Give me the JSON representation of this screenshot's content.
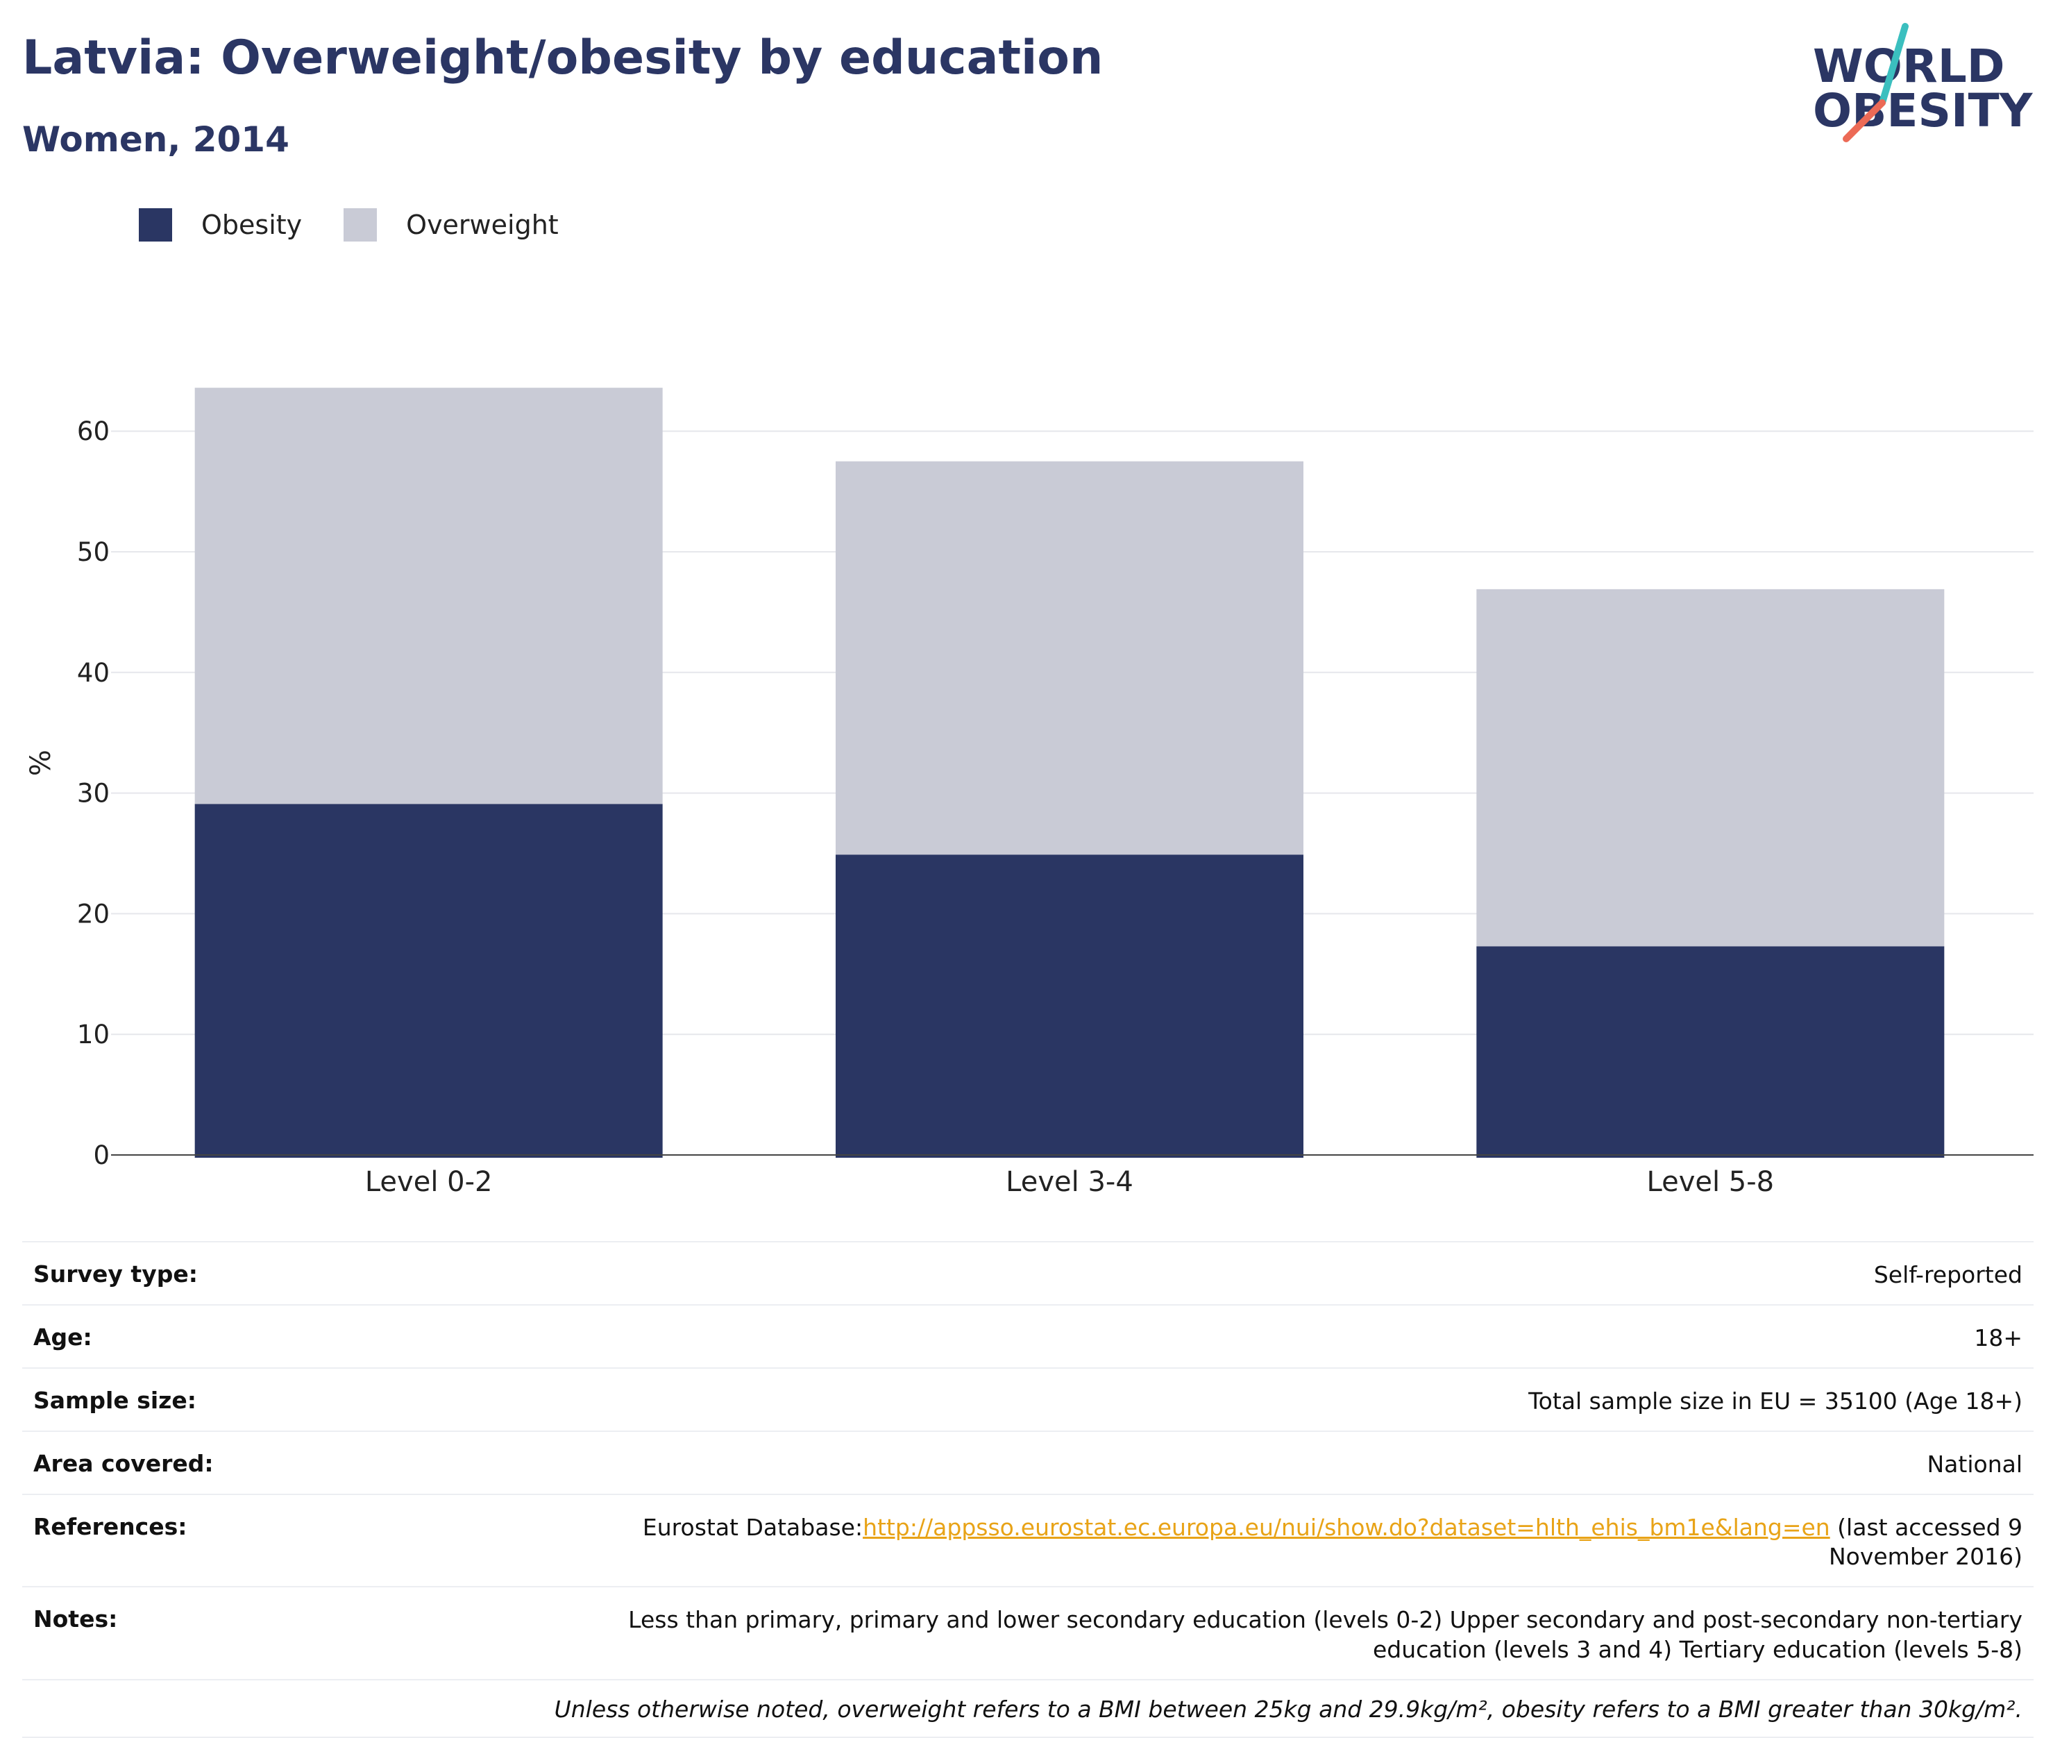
{
  "header": {
    "title": "Latvia: Overweight/obesity by education",
    "subtitle": "Women, 2014"
  },
  "logo": {
    "line1": "WORLD",
    "line2": "OBESITY"
  },
  "colors": {
    "obesity": "#2a3663",
    "overweight": "#c9cbd6",
    "link": "#e8a317",
    "text": "#2a3663"
  },
  "chart_data": {
    "type": "bar",
    "stacked": true,
    "categories": [
      "Level 0-2",
      "Level 3-4",
      "Level 5-8"
    ],
    "series": [
      {
        "name": "Obesity",
        "values": [
          29.1,
          24.9,
          17.3
        ],
        "color": "#2a3663"
      },
      {
        "name": "Overweight",
        "values": [
          34.5,
          32.6,
          29.6
        ],
        "color": "#c9cbd6"
      }
    ],
    "ylabel": "%",
    "ylim": [
      0,
      65
    ],
    "yticks": [
      0,
      10,
      20,
      30,
      40,
      50,
      60
    ],
    "grid": true,
    "legend": "top-left"
  },
  "meta": {
    "survey_type": {
      "label": "Survey type:",
      "value": "Self-reported"
    },
    "age": {
      "label": "Age:",
      "value": "18+"
    },
    "sample_size": {
      "label": "Sample size:",
      "value": "Total sample size in EU = 35100 (Age 18+)"
    },
    "area": {
      "label": "Area covered:",
      "value": "National"
    },
    "references": {
      "label": "References:",
      "prefix": "Eurostat Database:",
      "link": "http://appsso.eurostat.ec.europa.eu/nui/show.do?dataset=hlth_ehis_bm1e&lang=en",
      "suffix": " (last accessed 9 November 2016)"
    },
    "notes": {
      "label": "Notes:",
      "value": "Less than primary, primary and lower secondary education (levels 0-2) Upper secondary and post-secondary non-tertiary education (levels 3 and 4) Tertiary education (levels 5-8)"
    },
    "footnote": "Unless otherwise noted, overweight refers to a BMI between 25kg and 29.9kg/m², obesity refers to a BMI greater than 30kg/m²."
  }
}
